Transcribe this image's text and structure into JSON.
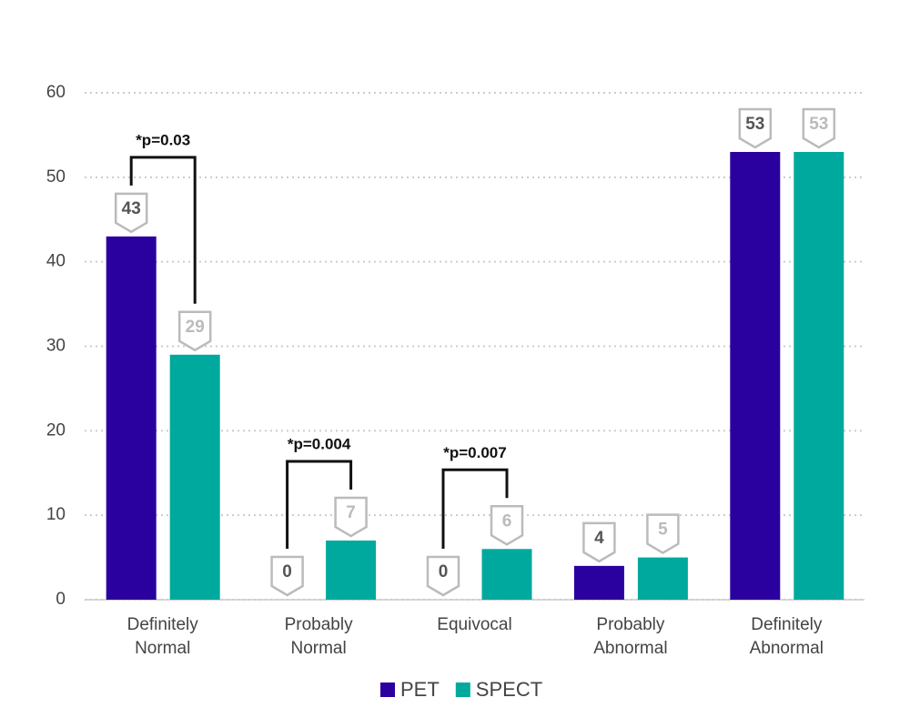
{
  "chart_data": {
    "type": "bar",
    "categories": [
      "Definitely Normal",
      "Probably Normal",
      "Equivocal",
      "Probably Abnormal",
      "Definitely Abnormal"
    ],
    "series": [
      {
        "name": "PET",
        "color": "#2a009f",
        "values": [
          43,
          0,
          0,
          4,
          53
        ]
      },
      {
        "name": "SPECT",
        "color": "#00a99d",
        "values": [
          29,
          7,
          6,
          5,
          53
        ]
      }
    ],
    "ylim": [
      0,
      60
    ],
    "yticks": [
      0,
      10,
      20,
      30,
      40,
      50,
      60
    ],
    "grid": true,
    "annotations": [
      {
        "text": "*p=0.03",
        "category": 0
      },
      {
        "text": "*p=0.004",
        "category": 1
      },
      {
        "text": "*p=0.007",
        "category": 2
      }
    ],
    "legend": "bottom"
  }
}
